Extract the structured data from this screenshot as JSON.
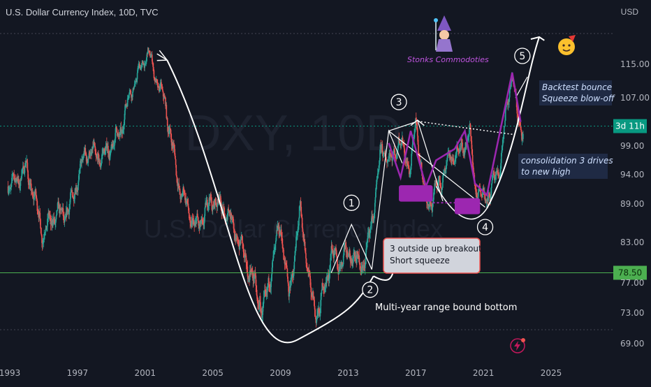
{
  "header": {
    "title": "U.S. Dollar Currency Index, 10D, TVC",
    "currency": "USD"
  },
  "watermark": {
    "symbol": "DXY, 10D",
    "name": "U.S. Dollar Currency Index"
  },
  "colors": {
    "background": "#131722",
    "up": "#26a69a",
    "down": "#ef5350",
    "support_line": "#4caf50",
    "purple": "#9c27b0",
    "annotation_white": "#ffffff"
  },
  "chart_data": {
    "type": "line",
    "title": "U.S. Dollar Currency Index, 10D, TVC",
    "xlabel": "",
    "ylabel": "",
    "x_ticks": [
      "1993",
      "1997",
      "2001",
      "2005",
      "2009",
      "2013",
      "2017",
      "2021",
      "2025"
    ],
    "y_ticks": [
      115.0,
      107.0,
      99.0,
      94.0,
      89.0,
      83.0,
      77.0,
      73.0,
      69.0
    ],
    "xlim": [
      1992.8,
      2027.5
    ],
    "ylim": [
      67,
      123
    ],
    "price_series": {
      "name": "DXY",
      "x": [
        1993.0,
        1994.0,
        1995.0,
        1995.5,
        1996.5,
        1997.5,
        1998.5,
        1999.5,
        2000.5,
        2001.2,
        2001.6,
        2002.2,
        2003.0,
        2004.0,
        2005.0,
        2006.0,
        2007.0,
        2008.0,
        2008.3,
        2009.0,
        2009.5,
        2010.2,
        2010.8,
        2011.3,
        2012.0,
        2012.6,
        2013.0,
        2013.5,
        2014.0,
        2014.6,
        2015.0,
        2015.5,
        2016.0,
        2016.7,
        2017.0,
        2017.6,
        2018.0,
        2018.6,
        2019.0,
        2019.6,
        2020.2,
        2020.5,
        2021.0,
        2021.4,
        2022.0,
        2022.7,
        2023.0,
        2023.3
      ],
      "y": [
        92,
        95,
        84,
        87,
        88,
        98,
        97,
        101,
        112,
        118,
        112,
        106,
        92,
        85,
        90,
        87,
        80,
        73,
        77,
        86,
        75,
        88,
        75,
        73,
        81,
        80,
        82,
        80,
        80,
        90,
        99,
        96,
        100,
        95,
        103,
        89,
        90,
        94,
        97,
        98,
        101,
        92,
        90,
        91,
        96,
        113,
        103,
        102
      ]
    },
    "levels": [
      {
        "value": 102.3,
        "label": "3d 11h",
        "color": "#089981",
        "style": "dashed"
      },
      {
        "value": 78.5,
        "label": "78.50",
        "color": "#4caf50",
        "style": "solid"
      }
    ],
    "wave_labels": [
      "1",
      "2",
      "3",
      "4",
      "5"
    ],
    "annotations": [
      "Multi-year range bound bottom",
      "3 outside up breakout\nShort squeeze",
      "consolidation 3 drives\n to new high",
      "Backtest  bounce\nSqueeze blow-off",
      "Stonks Commodoties"
    ]
  },
  "annotations": {
    "range_bottom": "Multi-year range bound bottom",
    "breakout_1": "3 outside up breakout",
    "breakout_2": "Short squeeze",
    "consolidation_1": "consolidation 3 drives",
    "consolidation_2": " to new high",
    "backtest_1": "Backtest  bounce",
    "backtest_2": "Squeeze blow-off",
    "brand": "Stonks Commodoties"
  },
  "price_labels": {
    "countdown": "3d 11h",
    "support": "78.50"
  },
  "icons": {
    "wizard": "wizard-icon",
    "party_face": "party-face-icon",
    "lightning": "lightning-icon"
  }
}
